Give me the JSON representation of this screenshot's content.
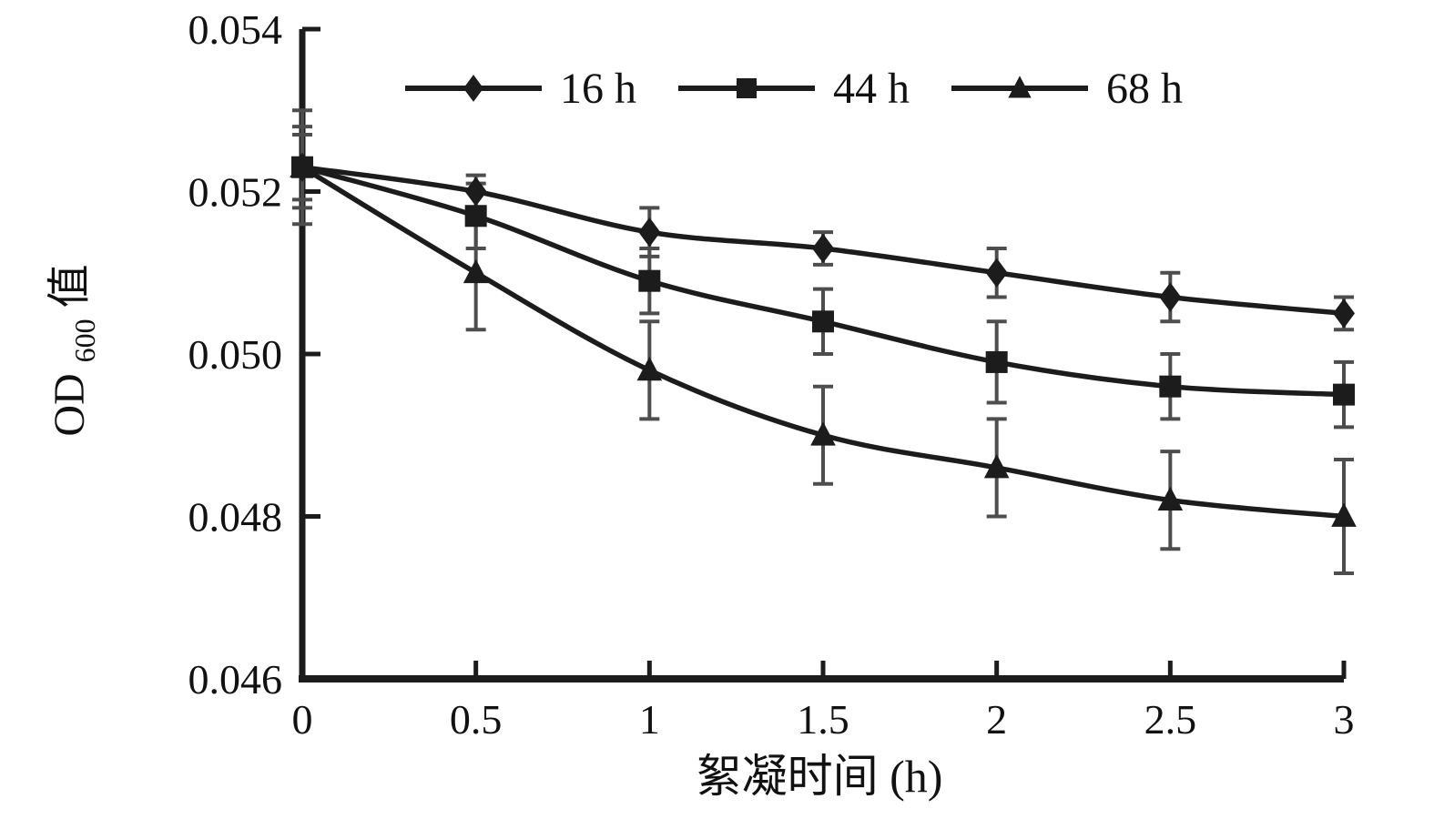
{
  "chart_data": {
    "type": "line",
    "title": "",
    "xlabel": "絮凝时间 (h)",
    "ylabel": "OD",
    "ylabel_sub": "600",
    "ylabel_suffix": "值",
    "xlim": [
      0,
      3
    ],
    "ylim": [
      0.046,
      0.054
    ],
    "xticks": [
      0,
      0.5,
      1,
      1.5,
      2,
      2.5,
      3
    ],
    "xtick_labels": [
      "0",
      "0.5",
      "1",
      "1.5",
      "2",
      "2.5",
      "3"
    ],
    "yticks": [
      0.046,
      0.048,
      0.05,
      0.052,
      0.054
    ],
    "ytick_labels": [
      "0.046",
      "0.048",
      "0.050",
      "0.052",
      "0.054"
    ],
    "x": [
      0,
      0.5,
      1,
      1.5,
      2,
      2.5,
      3
    ],
    "series": [
      {
        "name": "16 h",
        "marker": "diamond",
        "values": [
          0.0523,
          0.052,
          0.0515,
          0.0513,
          0.051,
          0.0507,
          0.0505
        ],
        "errors": [
          0.0007,
          0.0002,
          0.0003,
          0.0002,
          0.0003,
          0.0003,
          0.0002
        ]
      },
      {
        "name": "44 h",
        "marker": "square",
        "values": [
          0.0523,
          0.0517,
          0.0509,
          0.0504,
          0.0499,
          0.0496,
          0.0495
        ],
        "errors": [
          0.0005,
          0.0004,
          0.0004,
          0.0004,
          0.0005,
          0.0004,
          0.0004
        ]
      },
      {
        "name": "68 h",
        "marker": "triangle",
        "values": [
          0.0523,
          0.051,
          0.0498,
          0.049,
          0.0486,
          0.0482,
          0.048
        ],
        "errors": [
          0.0004,
          0.0007,
          0.0006,
          0.0006,
          0.0006,
          0.0006,
          0.0007
        ]
      }
    ],
    "legend_position": "top-inside",
    "grid": false,
    "line_color": "#1c1c1c",
    "error_bar_color": "#4d4d4d",
    "text_color": "#111111",
    "background": "#ffffff"
  }
}
